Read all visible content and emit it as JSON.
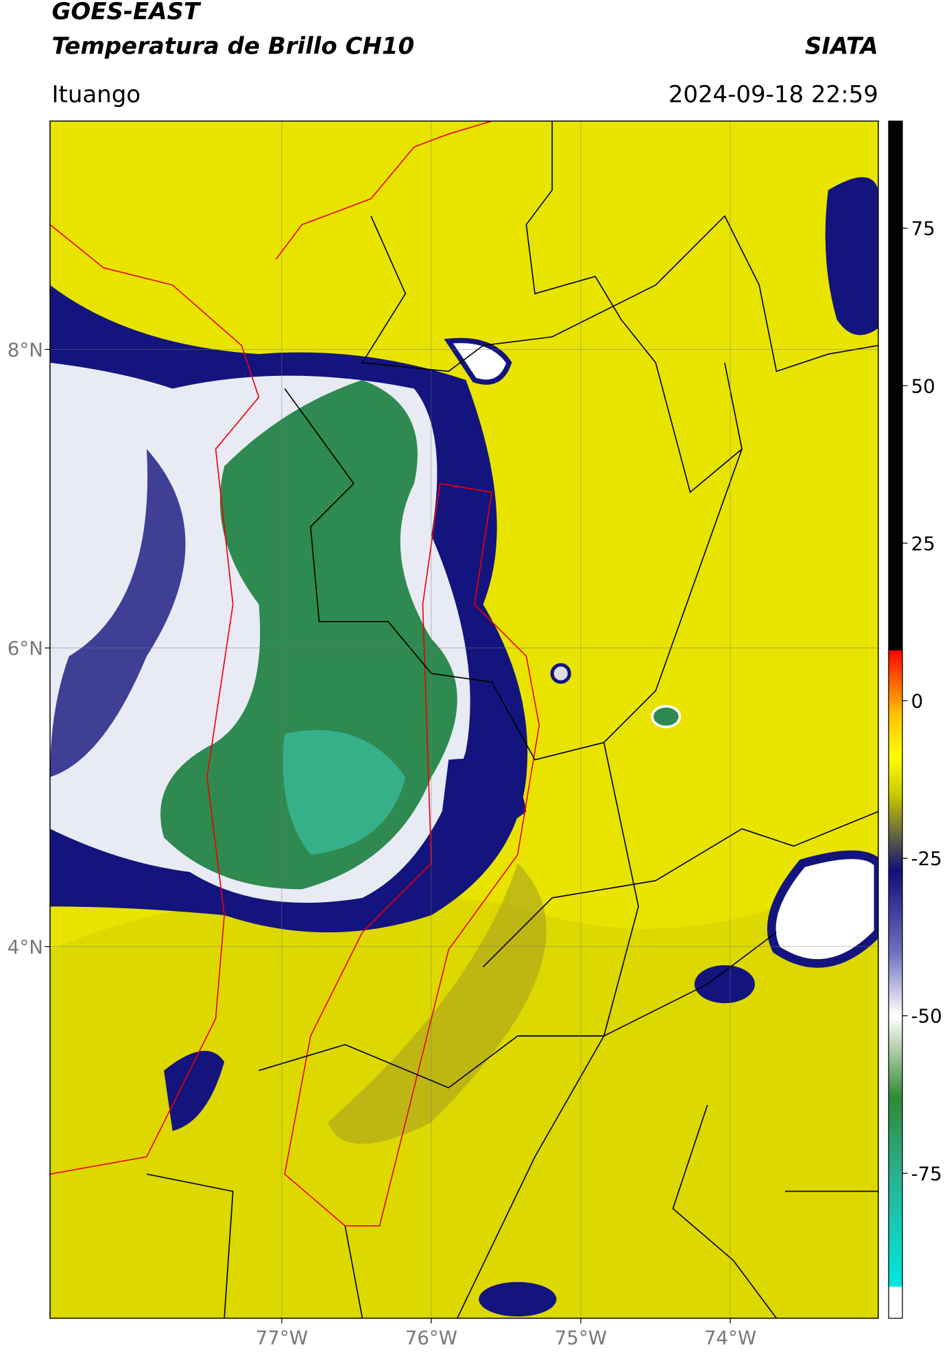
{
  "header": {
    "title": "GOES-EAST",
    "subtitle": "Temperatura de Brillo CH10",
    "agency": "SIATA",
    "location": "Ituango",
    "datetime": "2024-09-18 22:59"
  },
  "map": {
    "xlim": [
      -78.55,
      -73.01
    ],
    "ylim": [
      1.51,
      9.53
    ],
    "xticks": [
      {
        "value": -77,
        "label": "77°W"
      },
      {
        "value": -76,
        "label": "76°W"
      },
      {
        "value": -75,
        "label": "75°W"
      },
      {
        "value": -74,
        "label": "74°W"
      }
    ],
    "yticks": [
      {
        "value": 8,
        "label": "8°N"
      },
      {
        "value": 6,
        "label": "6°N"
      },
      {
        "value": 4,
        "label": "4°N"
      }
    ]
  },
  "colorbar": {
    "lim": [
      -98,
      92
    ],
    "ticks": [
      75,
      50,
      25,
      0,
      -25,
      -50,
      -75
    ],
    "colors": [
      {
        "value": -98,
        "color": "#ffffff"
      },
      {
        "value": -93,
        "color": "#ffffff"
      },
      {
        "value": -93,
        "color": "#00e8e0"
      },
      {
        "value": -75,
        "color": "#2cb090"
      },
      {
        "value": -63,
        "color": "#2e8a34"
      },
      {
        "value": -55,
        "color": "#b8d0b0"
      },
      {
        "value": -50,
        "color": "#ffffff"
      },
      {
        "value": -40,
        "color": "#7070c0"
      },
      {
        "value": -27,
        "color": "#10107a"
      },
      {
        "value": -22,
        "color": "#5a5a48"
      },
      {
        "value": -15,
        "color": "#c8c800"
      },
      {
        "value": -9,
        "color": "#ffff00"
      },
      {
        "value": -2,
        "color": "#ffc000"
      },
      {
        "value": 4,
        "color": "#ff5000"
      },
      {
        "value": 8,
        "color": "#ff0000"
      },
      {
        "value": 8,
        "color": "#000000"
      },
      {
        "value": 92,
        "color": "#000000"
      }
    ]
  }
}
